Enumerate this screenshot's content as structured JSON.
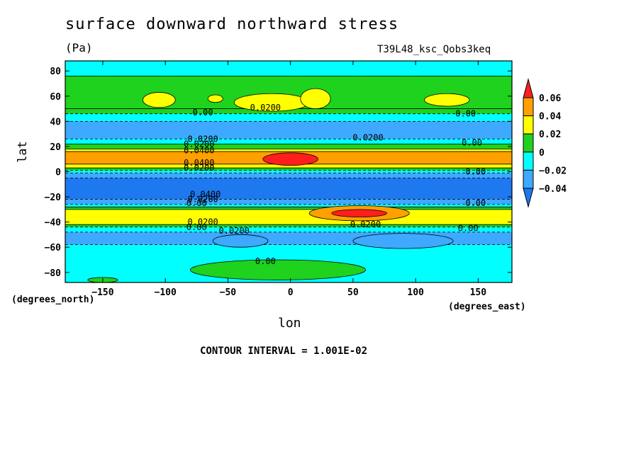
{
  "chart_data": {
    "type": "heatmap",
    "title": "surface downward northward stress",
    "units": "(Pa)",
    "run_label": "T39L48_ksc_Qobs3keq",
    "xlabel": "lon",
    "ylabel": "lat",
    "x_units": "(degrees_east)",
    "y_units": "(degrees_north)",
    "xlim": [
      -180,
      177
    ],
    "ylim": [
      -88,
      88
    ],
    "x_ticks": [
      -150,
      -100,
      -50,
      0,
      50,
      100,
      150
    ],
    "y_ticks": [
      80,
      60,
      40,
      20,
      0,
      -20,
      -40,
      -60,
      -80
    ],
    "colorbar": {
      "levels": [
        -0.04,
        -0.02,
        0,
        0.02,
        0.04,
        0.06
      ],
      "labels": [
        "0.06",
        "0.04",
        "0.02",
        "0",
        "−0.02",
        "−0.04"
      ],
      "colors": {
        "below_neg04": "#1e78f0",
        "neg04_neg02": "#3fa8ff",
        "neg02_0": "#00ffff",
        "0_02": "#1ed21e",
        "02_04": "#ffff00",
        "04_06": "#ffa000",
        "above_06": "#ff1e1e"
      }
    },
    "bands": [
      {
        "lat_from": 88,
        "lat_to": 76,
        "value": -0.01
      },
      {
        "lat_from": 76,
        "lat_to": 50,
        "value": 0.01
      },
      {
        "lat_from": 50,
        "lat_to": 46,
        "value": 0.005
      },
      {
        "lat_from": 46,
        "lat_to": 40,
        "value": -0.01
      },
      {
        "lat_from": 40,
        "lat_to": 26,
        "value": -0.03
      },
      {
        "lat_from": 26,
        "lat_to": 22,
        "value": -0.01
      },
      {
        "lat_from": 22,
        "lat_to": 18,
        "value": 0.01
      },
      {
        "lat_from": 18,
        "lat_to": 16,
        "value": 0.03
      },
      {
        "lat_from": 16,
        "lat_to": 6,
        "value": 0.05
      },
      {
        "lat_from": 6,
        "lat_to": 3,
        "value": 0.03
      },
      {
        "lat_from": 3,
        "lat_to": 1,
        "value": 0.01
      },
      {
        "lat_from": 1,
        "lat_to": -1,
        "value": -0.01
      },
      {
        "lat_from": -1,
        "lat_to": -5,
        "value": -0.03
      },
      {
        "lat_from": -5,
        "lat_to": -22,
        "value": -0.05
      },
      {
        "lat_from": -22,
        "lat_to": -26,
        "value": -0.03
      },
      {
        "lat_from": -26,
        "lat_to": -28,
        "value": -0.01
      },
      {
        "lat_from": -28,
        "lat_to": -30,
        "value": 0.01
      },
      {
        "lat_from": -30,
        "lat_to": -42,
        "value": 0.03
      },
      {
        "lat_from": -42,
        "lat_to": -44,
        "value": 0.01
      },
      {
        "lat_from": -44,
        "lat_to": -48,
        "value": -0.01
      },
      {
        "lat_from": -48,
        "lat_to": -58,
        "value": -0.03
      },
      {
        "lat_from": -58,
        "lat_to": -88,
        "value": -0.01
      }
    ],
    "features": [
      {
        "lon": 0,
        "lat": 10,
        "rlon": 22,
        "rlat": 5,
        "value": 0.07
      },
      {
        "lon": 55,
        "lat": -33,
        "rlon": 22,
        "rlat": 3,
        "value": 0.07
      },
      {
        "lon": 55,
        "lat": -33,
        "rlon": 40,
        "rlat": 6,
        "value": 0.05
      },
      {
        "lon": -105,
        "lat": 57,
        "rlon": 13,
        "rlat": 6,
        "value": 0.03
      },
      {
        "lon": -15,
        "lat": 55,
        "rlon": 30,
        "rlat": 7,
        "value": 0.03
      },
      {
        "lon": 20,
        "lat": 58,
        "rlon": 12,
        "rlat": 8,
        "value": 0.03
      },
      {
        "lon": 125,
        "lat": 57,
        "rlon": 18,
        "rlat": 5,
        "value": 0.03
      },
      {
        "lon": -60,
        "lat": 58,
        "rlon": 6,
        "rlat": 3,
        "value": 0.03
      },
      {
        "lon": -40,
        "lat": -55,
        "rlon": 22,
        "rlat": 5,
        "value": -0.03
      },
      {
        "lon": 90,
        "lat": -55,
        "rlon": 40,
        "rlat": 6,
        "value": -0.03
      },
      {
        "lon": -10,
        "lat": -78,
        "rlon": 70,
        "rlat": 8,
        "value": 0.01
      },
      {
        "lon": -150,
        "lat": -86,
        "rlon": 12,
        "rlat": 2,
        "value": 0.01
      }
    ],
    "contour_labels": [
      {
        "lon": -70,
        "lat": 47,
        "text": "0.00"
      },
      {
        "lon": -20,
        "lat": 51,
        "text": "0.0200"
      },
      {
        "lon": 140,
        "lat": 46,
        "text": "0.00"
      },
      {
        "lon": -70,
        "lat": 26,
        "text": "0.0200"
      },
      {
        "lon": 62,
        "lat": 27,
        "text": "0.0200"
      },
      {
        "lon": 145,
        "lat": 23,
        "text": "0.00"
      },
      {
        "lon": -73,
        "lat": 22,
        "text": "0.0200"
      },
      {
        "lon": -73,
        "lat": 17,
        "text": "0.0400"
      },
      {
        "lon": -73,
        "lat": 7,
        "text": "0.0400"
      },
      {
        "lon": -73,
        "lat": 3,
        "text": "0.0200"
      },
      {
        "lon": 148,
        "lat": 0,
        "text": "0.00"
      },
      {
        "lon": -68,
        "lat": -18,
        "text": "0.0400"
      },
      {
        "lon": -70,
        "lat": -22,
        "text": "0.0200"
      },
      {
        "lon": -75,
        "lat": -25,
        "text": "0.00"
      },
      {
        "lon": 148,
        "lat": -25,
        "text": "0.00"
      },
      {
        "lon": -70,
        "lat": -40,
        "text": "0.0200"
      },
      {
        "lon": -45,
        "lat": -47,
        "text": "0.0200"
      },
      {
        "lon": 60,
        "lat": -42,
        "text": "0.0200"
      },
      {
        "lon": -75,
        "lat": -44,
        "text": "0.00"
      },
      {
        "lon": 142,
        "lat": -45,
        "text": "0.00"
      },
      {
        "lon": -20,
        "lat": -71,
        "text": "0.00"
      }
    ],
    "grid": false
  },
  "footer": {
    "contour_interval": "CONTOUR INTERVAL = 1.001E-02"
  }
}
